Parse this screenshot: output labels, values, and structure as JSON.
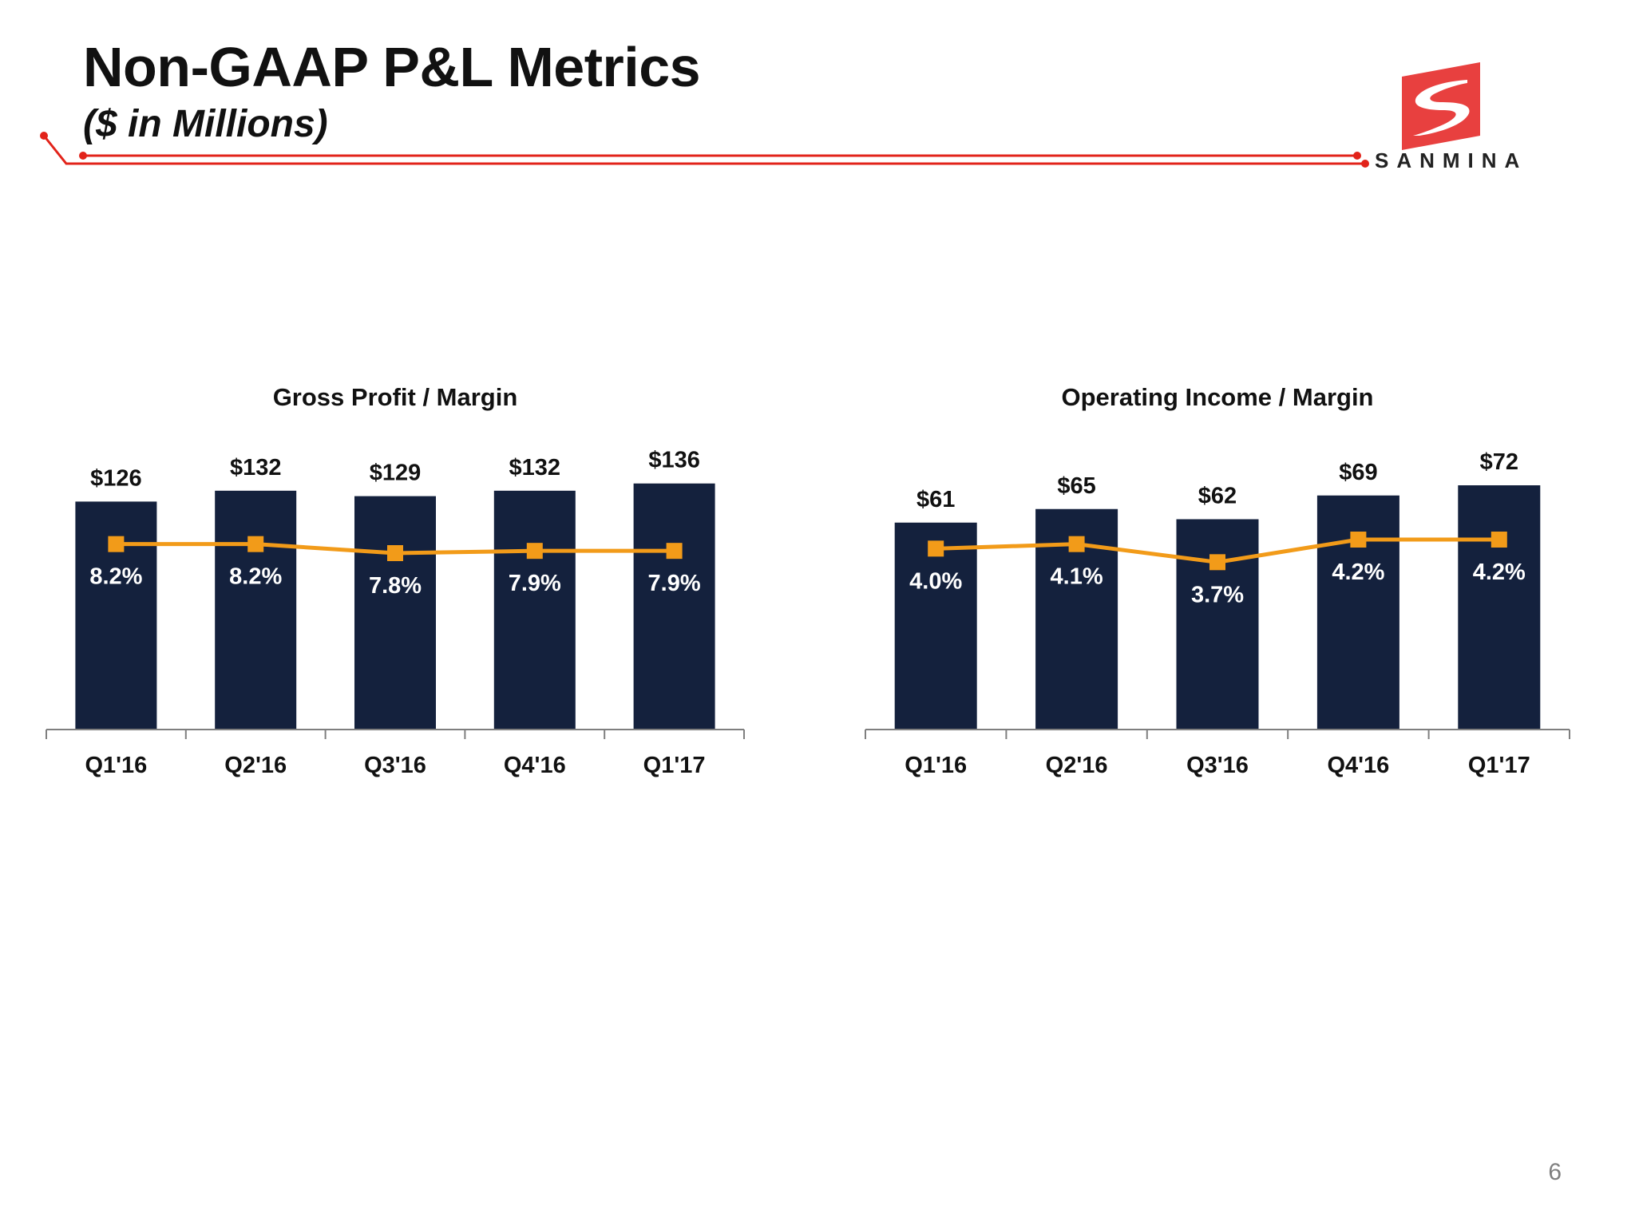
{
  "slide": {
    "title": "Non-GAAP P&L Metrics",
    "subtitle": "($ in Millions)",
    "page_number": "6",
    "logo_text": "SANMINA"
  },
  "colors": {
    "bar": "#14213d",
    "line": "#f29b19",
    "accent_red": "#e2231a",
    "axis": "#7f7f7f",
    "text": "#111111"
  },
  "chart_data": [
    {
      "type": "bar",
      "title": "Gross Profit / Margin",
      "categories": [
        "Q1'16",
        "Q2'16",
        "Q3'16",
        "Q4'16",
        "Q1'17"
      ],
      "series": [
        {
          "type": "bar",
          "values": [
            126,
            132,
            129,
            132,
            136
          ],
          "labels": [
            "$126",
            "$132",
            "$129",
            "$132",
            "$136"
          ]
        },
        {
          "type": "line",
          "values": [
            8.2,
            8.2,
            7.8,
            7.9,
            7.9
          ],
          "labels": [
            "8.2%",
            "8.2%",
            "7.8%",
            "7.9%",
            "7.9%"
          ]
        }
      ],
      "ylim": [
        0,
        150
      ],
      "line_ylim": [
        0,
        12
      ],
      "grid": false
    },
    {
      "type": "bar",
      "title": "Operating Income / Margin",
      "categories": [
        "Q1'16",
        "Q2'16",
        "Q3'16",
        "Q4'16",
        "Q1'17"
      ],
      "series": [
        {
          "type": "bar",
          "values": [
            61,
            65,
            62,
            69,
            72
          ],
          "labels": [
            "$61",
            "$65",
            "$62",
            "$69",
            "$72"
          ]
        },
        {
          "type": "line",
          "values": [
            4.0,
            4.1,
            3.7,
            4.2,
            4.2
          ],
          "labels": [
            "4.0%",
            "4.1%",
            "3.7%",
            "4.2%",
            "4.2%"
          ]
        }
      ],
      "ylim": [
        0,
        80
      ],
      "line_ylim": [
        0,
        6
      ],
      "grid": false
    }
  ]
}
